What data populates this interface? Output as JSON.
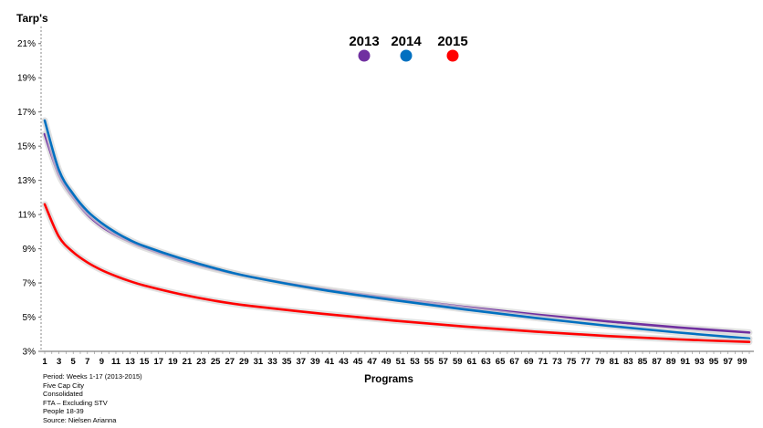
{
  "chart_data": {
    "type": "line",
    "ylabel": "Tarp's",
    "xlabel": "Programs",
    "ylim": [
      3,
      22
    ],
    "y_ticks": [
      3,
      5,
      7,
      9,
      11,
      13,
      15,
      17,
      19,
      21
    ],
    "y_tick_labels": [
      "3%",
      "5%",
      "7%",
      "9%",
      "11%",
      "13%",
      "15%",
      "17%",
      "19%",
      "21%"
    ],
    "xlim": [
      1,
      100
    ],
    "x_ticks": [
      1,
      3,
      5,
      7,
      9,
      11,
      13,
      15,
      17,
      19,
      21,
      23,
      25,
      27,
      29,
      31,
      33,
      35,
      37,
      39,
      41,
      43,
      45,
      47,
      49,
      51,
      53,
      55,
      57,
      59,
      61,
      63,
      65,
      67,
      69,
      71,
      73,
      75,
      77,
      79,
      81,
      83,
      85,
      87,
      89,
      91,
      93,
      95,
      97,
      99
    ],
    "x_tick_labels": [
      "1",
      "3",
      "5",
      "7",
      "9",
      "11",
      "13",
      "15",
      "17",
      "19",
      "21",
      "23",
      "25",
      "27",
      "29",
      "31",
      "33",
      "35",
      "37",
      "39",
      "41",
      "43",
      "45",
      "47",
      "49",
      "51",
      "53",
      "55",
      "57",
      "59",
      "61",
      "63",
      "65",
      "67",
      "69",
      "71",
      "73",
      "75",
      "77",
      "79",
      "81",
      "83",
      "85",
      "87",
      "89",
      "91",
      "93",
      "95",
      "97",
      "99"
    ],
    "grid": false,
    "legend_position": "top-center",
    "series": [
      {
        "name": "2013",
        "color": "#7030A0",
        "x": [
          1,
          3,
          5,
          7,
          9,
          11,
          13,
          15,
          20,
          25,
          30,
          40,
          50,
          60,
          70,
          80,
          90,
          100
        ],
        "values": [
          15.7,
          13.3,
          12.0,
          11.0,
          10.3,
          9.8,
          9.4,
          9.05,
          8.35,
          7.8,
          7.35,
          6.65,
          6.1,
          5.6,
          5.15,
          4.75,
          4.4,
          4.1
        ]
      },
      {
        "name": "2014",
        "color": "#0070C0",
        "x": [
          1,
          3,
          5,
          7,
          9,
          11,
          13,
          15,
          20,
          25,
          30,
          40,
          50,
          60,
          70,
          80,
          90,
          100
        ],
        "values": [
          16.5,
          13.6,
          12.2,
          11.2,
          10.5,
          9.95,
          9.5,
          9.15,
          8.45,
          7.85,
          7.35,
          6.6,
          6.0,
          5.45,
          4.95,
          4.5,
          4.1,
          3.75
        ]
      },
      {
        "name": "2015",
        "color": "#FF0000",
        "x": [
          1,
          3,
          5,
          7,
          9,
          11,
          13,
          15,
          20,
          25,
          30,
          40,
          50,
          60,
          70,
          80,
          90,
          100
        ],
        "values": [
          11.6,
          9.7,
          8.8,
          8.2,
          7.75,
          7.4,
          7.1,
          6.85,
          6.35,
          5.95,
          5.65,
          5.2,
          4.8,
          4.45,
          4.15,
          3.9,
          3.7,
          3.55
        ]
      }
    ]
  },
  "notes": [
    "Period: Weeks 1-17 (2013-2015)",
    "Five Cap City",
    "Consolidated",
    "FTA – Excluding STV",
    "People 18-39",
    "Source: Nielsen Arianna"
  ]
}
